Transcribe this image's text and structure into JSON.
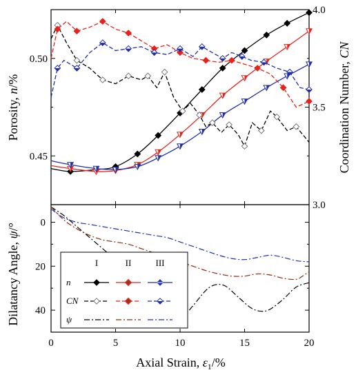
{
  "chart_data": [
    {
      "type": "line",
      "panel": "top",
      "xlabel": "Axial Strain, ε1/%",
      "ylabel": "Porosity, n/%",
      "ylabel_right": "Coordination Number, CN",
      "xlim": [
        0,
        20
      ],
      "ylim": [
        0.425,
        0.525
      ],
      "ylim_right": [
        3.0,
        4.0
      ],
      "xticks": [
        "0",
        "5",
        "10",
        "15",
        "20"
      ],
      "yticks": [
        "0.45",
        "0.50"
      ],
      "yticks_right": [
        "3.0",
        "3.5",
        "4.0"
      ],
      "series": [
        {
          "name": "I n",
          "color": "#000000",
          "axis": "left",
          "style": "solid",
          "marker": "diamond-filled",
          "points": [
            [
              0,
              0.4435
            ],
            [
              1.5,
              0.442
            ],
            [
              3.5,
              0.443
            ],
            [
              5,
              0.4445
            ],
            [
              6.7,
              0.451
            ],
            [
              8.3,
              0.4605
            ],
            [
              10,
              0.472
            ],
            [
              11.7,
              0.484
            ],
            [
              13.3,
              0.495
            ],
            [
              15,
              0.504
            ],
            [
              16.7,
              0.512
            ],
            [
              18.3,
              0.518
            ],
            [
              20,
              0.5235
            ]
          ]
        },
        {
          "name": "II n",
          "color": "#e8221b",
          "axis": "left",
          "style": "solid",
          "marker": "triangle-half",
          "points": [
            [
              0,
              0.445
            ],
            [
              1.5,
              0.4435
            ],
            [
              3.5,
              0.442
            ],
            [
              5,
              0.4425
            ],
            [
              6.7,
              0.4455
            ],
            [
              8.3,
              0.452
            ],
            [
              10,
              0.461
            ],
            [
              11.7,
              0.471
            ],
            [
              13.3,
              0.481
            ],
            [
              15,
              0.49
            ],
            [
              16.7,
              0.4985
            ],
            [
              18.3,
              0.506
            ],
            [
              20,
              0.514
            ]
          ]
        },
        {
          "name": "III n",
          "color": "#1f2fa8",
          "axis": "left",
          "style": "solid",
          "marker": "triangle-half",
          "points": [
            [
              0,
              0.4475
            ],
            [
              1.5,
              0.4455
            ],
            [
              3.5,
              0.4435
            ],
            [
              5,
              0.443
            ],
            [
              6.7,
              0.4445
            ],
            [
              8.3,
              0.449
            ],
            [
              10,
              0.455
            ],
            [
              11.7,
              0.4625
            ],
            [
              13.3,
              0.471
            ],
            [
              15,
              0.478
            ],
            [
              16.7,
              0.485
            ],
            [
              18.3,
              0.491
            ],
            [
              20,
              0.497
            ]
          ]
        },
        {
          "name": "I CN",
          "color": "#000000",
          "axis": "right",
          "style": "dash",
          "marker": "diamond-open",
          "points": [
            [
              0,
              3.85
            ],
            [
              0.5,
              3.92
            ],
            [
              1.2,
              3.83
            ],
            [
              2,
              3.74
            ],
            [
              3,
              3.7
            ],
            [
              4,
              3.64
            ],
            [
              5,
              3.62
            ],
            [
              6,
              3.66
            ],
            [
              7,
              3.64
            ],
            [
              7.5,
              3.66
            ],
            [
              8.2,
              3.6
            ],
            [
              8.8,
              3.68
            ],
            [
              9.5,
              3.55
            ],
            [
              10.2,
              3.48
            ],
            [
              10.8,
              3.52
            ],
            [
              11.5,
              3.46
            ],
            [
              12,
              3.4
            ],
            [
              12.5,
              3.42
            ],
            [
              13.2,
              3.37
            ],
            [
              13.8,
              3.41
            ],
            [
              14.5,
              3.36
            ],
            [
              15,
              3.3
            ],
            [
              15.6,
              3.42
            ],
            [
              16.3,
              3.38
            ],
            [
              17,
              3.48
            ],
            [
              17.5,
              3.45
            ],
            [
              18.3,
              3.38
            ],
            [
              19,
              3.4
            ],
            [
              20,
              3.32
            ]
          ]
        },
        {
          "name": "II CN",
          "color": "#e8221b",
          "axis": "right",
          "style": "dash",
          "marker": "diamond-filled",
          "points": [
            [
              0,
              3.75
            ],
            [
              0.5,
              3.9
            ],
            [
              1.2,
              3.94
            ],
            [
              2,
              3.89
            ],
            [
              3,
              3.91
            ],
            [
              4,
              3.94
            ],
            [
              5,
              3.9
            ],
            [
              6,
              3.88
            ],
            [
              7,
              3.84
            ],
            [
              8,
              3.8
            ],
            [
              9,
              3.82
            ],
            [
              10,
              3.78
            ],
            [
              11,
              3.75
            ],
            [
              12,
              3.74
            ],
            [
              13,
              3.73
            ],
            [
              14,
              3.74
            ],
            [
              15,
              3.72
            ],
            [
              16,
              3.7
            ],
            [
              17,
              3.67
            ],
            [
              18,
              3.6
            ],
            [
              19,
              3.5
            ],
            [
              20,
              3.53
            ]
          ]
        },
        {
          "name": "III CN",
          "color": "#1f2fa8",
          "axis": "right",
          "style": "dash",
          "marker": "diamond-half",
          "points": [
            [
              0,
              3.55
            ],
            [
              0.5,
              3.7
            ],
            [
              1,
              3.74
            ],
            [
              2,
              3.7
            ],
            [
              3,
              3.78
            ],
            [
              4,
              3.83
            ],
            [
              5,
              3.79
            ],
            [
              6,
              3.8
            ],
            [
              7,
              3.81
            ],
            [
              8,
              3.78
            ],
            [
              9,
              3.77
            ],
            [
              10,
              3.8
            ],
            [
              11,
              3.76
            ],
            [
              11.7,
              3.81
            ],
            [
              12.5,
              3.78
            ],
            [
              13.3,
              3.75
            ],
            [
              14,
              3.78
            ],
            [
              14.8,
              3.76
            ],
            [
              15.5,
              3.74
            ],
            [
              16.5,
              3.73
            ],
            [
              17.5,
              3.7
            ],
            [
              18.5,
              3.68
            ],
            [
              19.3,
              3.6
            ],
            [
              20,
              3.59
            ]
          ]
        }
      ]
    },
    {
      "type": "line",
      "panel": "bottom",
      "xlabel": "Axial Strain, ε1/%",
      "ylabel": "Dilatancy Angle, ψ/°",
      "xlim": [
        0,
        20
      ],
      "ylim": [
        -8,
        50
      ],
      "y_inverted": true,
      "xticks": [
        "0",
        "5",
        "10",
        "15",
        "20"
      ],
      "yticks": [
        "0",
        "20",
        "40"
      ],
      "series": [
        {
          "name": "I ψ",
          "color": "#000000",
          "style": "dashdot",
          "points": [
            [
              0,
              -7
            ],
            [
              1,
              -3
            ],
            [
              2,
              2
            ],
            [
              3,
              7
            ],
            [
              4,
              12
            ],
            [
              5,
              17
            ],
            [
              6,
              21
            ],
            [
              7,
              26
            ],
            [
              8,
              31
            ],
            [
              9,
              36
            ],
            [
              10,
              40.5
            ],
            [
              10.5,
              41
            ],
            [
              11,
              38
            ],
            [
              12,
              31
            ],
            [
              12.7,
              28.5
            ],
            [
              13.5,
              29
            ],
            [
              14.5,
              34
            ],
            [
              15.5,
              39
            ],
            [
              16.3,
              40.5
            ],
            [
              17,
              39.5
            ],
            [
              18,
              35
            ],
            [
              19,
              29.5
            ],
            [
              20,
              27.5
            ]
          ]
        },
        {
          "name": "II ψ",
          "color": "#8b2a0f",
          "style": "dashdot",
          "points": [
            [
              0,
              -7
            ],
            [
              1,
              -1
            ],
            [
              2,
              3
            ],
            [
              3,
              6
            ],
            [
              4,
              8
            ],
            [
              5,
              9
            ],
            [
              6,
              10
            ],
            [
              7,
              12
            ],
            [
              8,
              14
            ],
            [
              9,
              16
            ],
            [
              10,
              18
            ],
            [
              11,
              20
            ],
            [
              12,
              22
            ],
            [
              13,
              23.5
            ],
            [
              14,
              24.5
            ],
            [
              15,
              24.5
            ],
            [
              16,
              23.5
            ],
            [
              17,
              24
            ],
            [
              18,
              25.5
            ],
            [
              19,
              26
            ],
            [
              19.5,
              24.5
            ],
            [
              20,
              22.5
            ]
          ]
        },
        {
          "name": "III ψ",
          "color": "#1f2fa8",
          "style": "dashdot",
          "points": [
            [
              0,
              -6
            ],
            [
              1,
              -2
            ],
            [
              2,
              0
            ],
            [
              3,
              1
            ],
            [
              4,
              2
            ],
            [
              5,
              3
            ],
            [
              6,
              4
            ],
            [
              7,
              5
            ],
            [
              8,
              6
            ],
            [
              9,
              7
            ],
            [
              10,
              9
            ],
            [
              11,
              11
            ],
            [
              12,
              13
            ],
            [
              13,
              15
            ],
            [
              14,
              16.5
            ],
            [
              15,
              17
            ],
            [
              16,
              16
            ],
            [
              17,
              15
            ],
            [
              18,
              16
            ],
            [
              19,
              17.5
            ],
            [
              20,
              18
            ]
          ]
        }
      ]
    }
  ],
  "legend": {
    "headers": [
      "I",
      "II",
      "III"
    ],
    "rows": [
      {
        "label": "n",
        "colors": [
          "#000000",
          "#e8221b",
          "#1f2fa8"
        ],
        "style": "solid",
        "markers": [
          "diamond-filled",
          "diamond-brown",
          "diamond-blue"
        ]
      },
      {
        "label": "CN",
        "colors": [
          "#000000",
          "#e8221b",
          "#1f2fa8"
        ],
        "style": "dash",
        "markers": [
          "diamond-open",
          "diamond-brown",
          "diamond-half"
        ]
      },
      {
        "label": "ψ",
        "colors": [
          "#000000",
          "#8b2a0f",
          "#1f2fa8"
        ],
        "style": "dashdot",
        "markers": [
          "none",
          "none",
          "none"
        ]
      }
    ]
  },
  "labels": {
    "xlabel_prefix": "Axial Strain, ",
    "xlabel_symbol": "ε",
    "xlabel_sub": "1",
    "xlabel_suffix": "/%",
    "ylabel_top_prefix": "Porosity, ",
    "ylabel_top_symbol": "n",
    "ylabel_top_suffix": "/%",
    "ylabel_right_prefix": "Coordination Number, ",
    "ylabel_right_symbol": "CN",
    "ylabel_bottom_prefix": "Dilatancy Angle, ",
    "ylabel_bottom_symbol": "ψ",
    "ylabel_bottom_suffix": "/°"
  }
}
